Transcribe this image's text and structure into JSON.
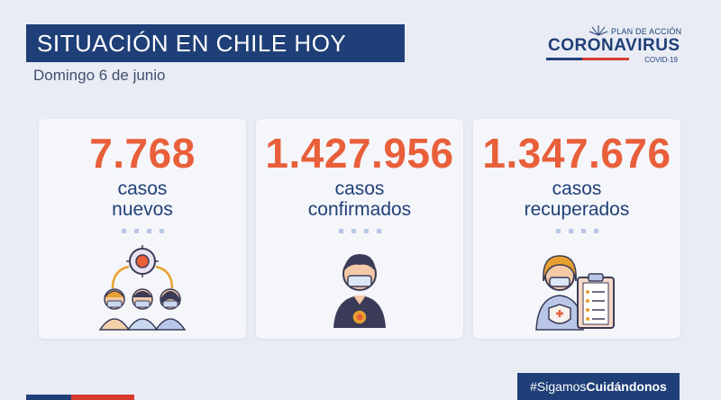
{
  "header": {
    "title": "SITUACIÓN EN CHILE HOY",
    "date": "Domingo 6 de junio"
  },
  "logo": {
    "small": "PLAN DE ACCIÓN",
    "big": "CORONAVIRUS",
    "sub": "COVID-19"
  },
  "cards": [
    {
      "number": "7.768",
      "line1": "casos",
      "line2": "nuevos",
      "icon": "contagion-icon"
    },
    {
      "number": "1.427.956",
      "line1": "casos",
      "line2": "confirmados",
      "icon": "masked-person-icon"
    },
    {
      "number": "1.347.676",
      "line1": "casos",
      "line2": "recuperados",
      "icon": "recovered-clipboard-icon"
    }
  ],
  "footer": {
    "hashtag_prefix": "#Sigamos",
    "hashtag_bold": "Cuidándonos"
  },
  "colors": {
    "navy": "#1f3f78",
    "accent_orange": "#e85f3a",
    "background": "#e9ecf4",
    "flag_red": "#d83a2e"
  }
}
